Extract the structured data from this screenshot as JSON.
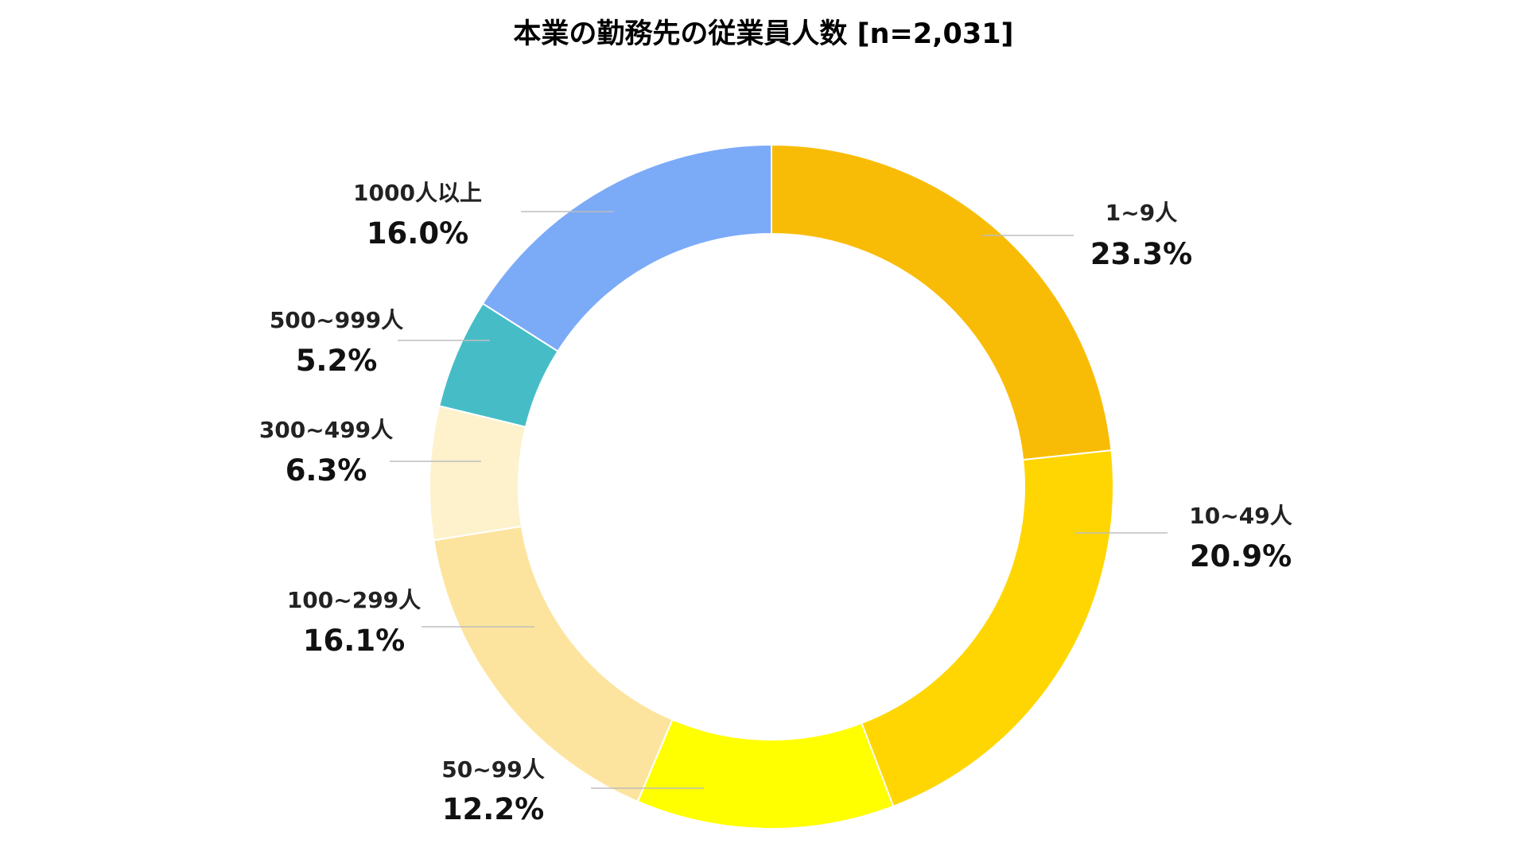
{
  "chart_data": {
    "type": "pie",
    "title": "本業の勤務先の従業員人数 [n=2,031]",
    "donut": true,
    "slices": [
      {
        "label": "1~9人",
        "value": 23.3,
        "display": "23.3%",
        "color": "#F9BC06"
      },
      {
        "label": "10~49人",
        "value": 20.9,
        "display": "20.9%",
        "color": "#FFD601"
      },
      {
        "label": "50~99人",
        "value": 12.2,
        "display": "12.2%",
        "color": "#FFFF00"
      },
      {
        "label": "100~299人",
        "value": 16.1,
        "display": "16.1%",
        "color": "#FDE49E"
      },
      {
        "label": "300~499人",
        "value": 6.3,
        "display": "6.3%",
        "color": "#FEF2CD"
      },
      {
        "label": "500~999人",
        "value": 5.2,
        "display": "5.2%",
        "color": "#46BDC6"
      },
      {
        "label": "1000人以上",
        "value": 16.0,
        "display": "16.0%",
        "color": "#7BAAF7"
      }
    ]
  }
}
